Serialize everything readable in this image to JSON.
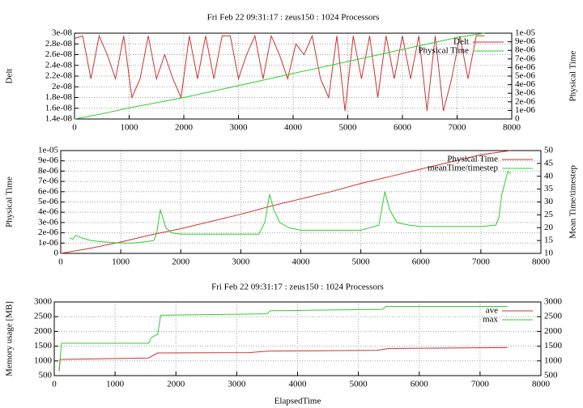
{
  "chart_data": [
    {
      "type": "line",
      "title": "Fri Feb 22 09:31:17 : zeus150 : 1024 Processors",
      "ylabel": "Delt",
      "y2label": "Physical Time",
      "xlim": [
        0,
        8000
      ],
      "xticks": [
        0,
        1000,
        2000,
        3000,
        4000,
        5000,
        6000,
        7000,
        8000
      ],
      "ylim": [
        1.4e-08,
        3e-08
      ],
      "yticks": [
        {
          "value": 1.4e-08,
          "label": "1.4e-08"
        },
        {
          "value": 1.6e-08,
          "label": "1.6e-08"
        },
        {
          "value": 1.8e-08,
          "label": "1.8e-08"
        },
        {
          "value": 2e-08,
          "label": "2e-08"
        },
        {
          "value": 2.2e-08,
          "label": "2.2e-08"
        },
        {
          "value": 2.4e-08,
          "label": "2.4e-08"
        },
        {
          "value": 2.6e-08,
          "label": "2.6e-08"
        },
        {
          "value": 2.8e-08,
          "label": "2.8e-08"
        },
        {
          "value": 3e-08,
          "label": "3e-08"
        }
      ],
      "y2lim": [
        0,
        1e-05
      ],
      "y2ticks": [
        0,
        {
          "value": 1e-06,
          "label": "1e-06"
        },
        {
          "value": 2e-06,
          "label": "2e-06"
        },
        {
          "value": 3e-06,
          "label": "3e-06"
        },
        {
          "value": 4e-06,
          "label": "4e-06"
        },
        {
          "value": 5e-06,
          "label": "5e-06"
        },
        {
          "value": 6e-06,
          "label": "6e-06"
        },
        {
          "value": 7e-06,
          "label": "7e-06"
        },
        {
          "value": 8e-06,
          "label": "8e-06"
        },
        {
          "value": 9e-06,
          "label": "9e-06"
        },
        {
          "value": 1e-05,
          "label": "1e-05"
        }
      ],
      "grid": true,
      "legend": "upper right",
      "series": [
        {
          "name": "Delt",
          "color": "#cc3333",
          "x": [
            0,
            150,
            300,
            450,
            600,
            750,
            900,
            1050,
            1200,
            1350,
            1500,
            1650,
            1800,
            1950,
            2100,
            2250,
            2400,
            2550,
            2700,
            2850,
            3000,
            3150,
            3300,
            3450,
            3600,
            3750,
            3900,
            4050,
            4200,
            4350,
            4500,
            4650,
            4800,
            4950,
            5100,
            5250,
            5400,
            5550,
            5700,
            5850,
            6000,
            6150,
            6300,
            6450,
            6600,
            6750,
            6900,
            7050,
            7200,
            7350,
            7500
          ],
          "values": [
            2.9e-08,
            2.95e-08,
            2.15e-08,
            2.95e-08,
            2.6e-08,
            2.15e-08,
            2.95e-08,
            1.8e-08,
            2.15e-08,
            2.95e-08,
            2.15e-08,
            2.6e-08,
            2.15e-08,
            1.8e-08,
            2.95e-08,
            2.15e-08,
            2.95e-08,
            2.15e-08,
            2.95e-08,
            2.95e-08,
            2.15e-08,
            2.6e-08,
            2.95e-08,
            2.15e-08,
            2.95e-08,
            2.6e-08,
            2.15e-08,
            2.8e-08,
            2.6e-08,
            2.95e-08,
            2.15e-08,
            1.8e-08,
            2.95e-08,
            1.55e-08,
            2.95e-08,
            2.15e-08,
            2.95e-08,
            1.8e-08,
            2.95e-08,
            2.15e-08,
            2.95e-08,
            2.15e-08,
            2.95e-08,
            1.55e-08,
            2.95e-08,
            1.55e-08,
            2.15e-08,
            2.95e-08,
            2.15e-08,
            2.95e-08,
            2.95e-08
          ]
        },
        {
          "name": "Physical Time",
          "color": "#33cc33",
          "axis": "y2",
          "x": [
            0,
            500,
            1000,
            1500,
            2000,
            2500,
            3000,
            3500,
            4000,
            4500,
            5000,
            5500,
            6000,
            6500,
            7000,
            7500
          ],
          "values": [
            0,
            6e-07,
            1.3e-06,
            1.9e-06,
            2.5e-06,
            3.2e-06,
            3.9e-06,
            4.6e-06,
            5.3e-06,
            6e-06,
            6.7e-06,
            7.4e-06,
            8.1e-06,
            8.8e-06,
            9.5e-06,
            1e-05
          ]
        }
      ]
    },
    {
      "type": "line",
      "ylabel": "Physical Time",
      "y2label": "Mean Time/timestep",
      "xlim": [
        0,
        8000
      ],
      "xticks": [
        0,
        1000,
        2000,
        3000,
        4000,
        5000,
        6000,
        7000,
        8000
      ],
      "ylim": [
        0,
        1e-05
      ],
      "yticks": [
        0,
        {
          "value": 1e-06,
          "label": "1e-06"
        },
        {
          "value": 2e-06,
          "label": "2e-06"
        },
        {
          "value": 3e-06,
          "label": "3e-06"
        },
        {
          "value": 4e-06,
          "label": "4e-06"
        },
        {
          "value": 5e-06,
          "label": "5e-06"
        },
        {
          "value": 6e-06,
          "label": "6e-06"
        },
        {
          "value": 7e-06,
          "label": "7e-06"
        },
        {
          "value": 8e-06,
          "label": "8e-06"
        },
        {
          "value": 9e-06,
          "label": "9e-06"
        },
        {
          "value": 1e-05,
          "label": "1e-05"
        }
      ],
      "y2lim": [
        10,
        50
      ],
      "y2ticks": [
        10,
        15,
        20,
        25,
        30,
        35,
        40,
        45,
        50
      ],
      "grid": true,
      "legend": "upper right",
      "series": [
        {
          "name": "Physical Time",
          "color": "#cc3333",
          "x": [
            0,
            500,
            1000,
            1500,
            2000,
            2500,
            3000,
            3500,
            4000,
            4500,
            5000,
            5500,
            6000,
            6500,
            7000,
            7500
          ],
          "values": [
            0,
            5e-07,
            1.1e-06,
            1.8e-06,
            2.4e-06,
            3.1e-06,
            3.8e-06,
            4.6e-06,
            5.3e-06,
            6e-06,
            6.8e-06,
            7.5e-06,
            8.2e-06,
            8.9e-06,
            9.6e-06,
            1e-05
          ]
        },
        {
          "name": "meanTime/timestep",
          "color": "#33cc33",
          "axis": "y2",
          "x": [
            150,
            200,
            250,
            350,
            500,
            700,
            1000,
            1200,
            1400,
            1550,
            1600,
            1660,
            1700,
            1750,
            1850,
            2000,
            2500,
            3000,
            3300,
            3400,
            3480,
            3550,
            3650,
            3800,
            4000,
            4500,
            5000,
            5300,
            5400,
            5480,
            5600,
            5800,
            6000,
            6500,
            7000,
            7250,
            7300,
            7350,
            7450,
            7500
          ],
          "values": [
            16,
            15.5,
            17,
            16,
            15,
            14.5,
            14,
            14,
            14.5,
            15,
            18,
            27,
            24,
            20,
            18,
            17.5,
            17.5,
            17.5,
            17.5,
            22,
            33,
            27,
            22,
            20,
            19,
            19,
            19,
            21,
            34,
            27,
            22,
            21,
            20.5,
            20.5,
            20.5,
            21,
            24,
            33,
            42,
            41
          ]
        }
      ]
    },
    {
      "type": "line",
      "title": "Fri Feb 22 09:31:17 : zeus150 : 1024 Processors",
      "xlabel": "ElapsedTime",
      "ylabel": "Memory usage [MB]",
      "xlim": [
        0,
        8000
      ],
      "xticks": [
        0,
        1000,
        2000,
        3000,
        4000,
        5000,
        6000,
        7000,
        8000
      ],
      "ylim": [
        500,
        3000
      ],
      "yticks": [
        500,
        1000,
        1500,
        2000,
        2500,
        3000
      ],
      "y2lim": [
        500,
        3000
      ],
      "y2ticks": [
        500,
        1000,
        1500,
        2000,
        2500,
        3000
      ],
      "grid": true,
      "legend": "upper right",
      "series": [
        {
          "name": "ave",
          "color": "#cc3333",
          "x": [
            80,
            100,
            1550,
            1700,
            3200,
            3500,
            5300,
            5500,
            7450
          ],
          "values": [
            650,
            1050,
            1100,
            1270,
            1280,
            1330,
            1360,
            1420,
            1450
          ]
        },
        {
          "name": "max",
          "color": "#33cc33",
          "x": [
            80,
            120,
            1550,
            1600,
            1700,
            1750,
            3500,
            3550,
            5400,
            5450,
            7450
          ],
          "values": [
            700,
            1600,
            1600,
            1800,
            1900,
            2550,
            2600,
            2700,
            2750,
            2850,
            2850
          ]
        }
      ]
    }
  ]
}
